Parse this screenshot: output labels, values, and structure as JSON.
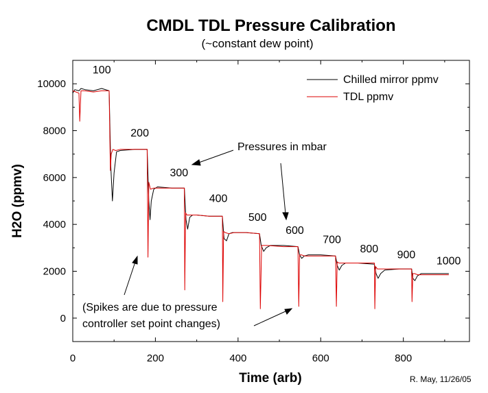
{
  "chart_data": {
    "type": "line",
    "title": "CMDL TDL Pressure Calibration",
    "subtitle": "(~constant dew point)",
    "xlabel": "Time (arb)",
    "ylabel": "H2O (ppmv)",
    "xlim": [
      0,
      960
    ],
    "ylim": [
      -1000,
      11000
    ],
    "x_ticks": [
      0,
      200,
      400,
      600,
      800
    ],
    "y_ticks": [
      0,
      2000,
      4000,
      6000,
      8000,
      10000
    ],
    "legend_position": "top-right",
    "credit": "R. May, 11/26/05",
    "colors": {
      "chilled_mirror": "#000000",
      "tdl": "#dd0000"
    },
    "series": [
      {
        "name": "Chilled mirror ppmv",
        "key": "chilled_mirror",
        "x": [
          0,
          5,
          15,
          20,
          30,
          50,
          70,
          88,
          92,
          96,
          100,
          106,
          115,
          150,
          180,
          184,
          187,
          190,
          196,
          205,
          240,
          270,
          274,
          278,
          283,
          290,
          300,
          330,
          362,
          366,
          372,
          378,
          386,
          420,
          452,
          456,
          462,
          468,
          478,
          510,
          545,
          549,
          554,
          560,
          570,
          600,
          636,
          640,
          645,
          651,
          660,
          690,
          730,
          734,
          739,
          745,
          755,
          790,
          820,
          823,
          828,
          834,
          843,
          870,
          910
        ],
        "y": [
          9600,
          9750,
          9700,
          9800,
          9750,
          9700,
          9800,
          9700,
          6500,
          5000,
          6200,
          7100,
          7150,
          7200,
          7200,
          5000,
          4200,
          5000,
          5500,
          5600,
          5550,
          5550,
          4200,
          3800,
          4300,
          4400,
          4400,
          4350,
          4350,
          3400,
          3300,
          3600,
          3650,
          3650,
          3600,
          3100,
          2850,
          3000,
          3100,
          3100,
          3050,
          2700,
          2550,
          2650,
          2700,
          2700,
          2650,
          2250,
          2050,
          2250,
          2350,
          2350,
          2300,
          1900,
          1700,
          1900,
          2050,
          2100,
          2100,
          1700,
          1600,
          1800,
          1900,
          1900,
          1900
        ]
      },
      {
        "name": "TDL ppmv",
        "key": "tdl",
        "x": [
          0,
          8,
          15,
          17,
          20,
          30,
          50,
          70,
          88,
          91,
          93,
          97,
          104,
          115,
          150,
          180,
          182,
          184,
          188,
          196,
          205,
          240,
          270,
          271,
          273,
          276,
          285,
          300,
          330,
          362,
          363,
          365,
          369,
          378,
          390,
          420,
          452,
          454,
          457,
          461,
          470,
          510,
          545,
          547,
          549,
          553,
          562,
          600,
          636,
          638,
          640,
          644,
          652,
          690,
          730,
          731,
          733,
          737,
          745,
          790,
          820,
          821,
          823,
          827,
          835,
          870,
          910
        ],
        "y": [
          9700,
          9650,
          9600,
          8400,
          9700,
          9700,
          9650,
          9700,
          9700,
          6300,
          7000,
          7200,
          7150,
          7200,
          7200,
          7200,
          2600,
          5800,
          5500,
          5550,
          5550,
          5550,
          5550,
          1200,
          4500,
          4400,
          4400,
          4400,
          4350,
          4350,
          700,
          3700,
          3650,
          3600,
          3650,
          3650,
          3600,
          400,
          3100,
          3100,
          3100,
          3050,
          3050,
          500,
          2700,
          2700,
          2650,
          2650,
          2650,
          500,
          2400,
          2350,
          2350,
          2350,
          2350,
          400,
          2200,
          2100,
          2100,
          2100,
          2100,
          700,
          1900,
          1900,
          1850,
          1850,
          1850
        ]
      }
    ],
    "annotations": {
      "pressure_labels": [
        {
          "text": "100",
          "x": 48,
          "y": 10450
        },
        {
          "text": "200",
          "x": 140,
          "y": 7750
        },
        {
          "text": "300",
          "x": 235,
          "y": 6050
        },
        {
          "text": "400",
          "x": 330,
          "y": 4950
        },
        {
          "text": "500",
          "x": 425,
          "y": 4150
        },
        {
          "text": "600",
          "x": 515,
          "y": 3600
        },
        {
          "text": "700",
          "x": 605,
          "y": 3200
        },
        {
          "text": "800",
          "x": 695,
          "y": 2800
        },
        {
          "text": "900",
          "x": 785,
          "y": 2550
        },
        {
          "text": "1000",
          "x": 880,
          "y": 2300
        }
      ],
      "pressures_note": "Pressures in mbar",
      "spikes_note": [
        "(Spikes are due to pressure",
        "controller set point changes)"
      ]
    }
  }
}
